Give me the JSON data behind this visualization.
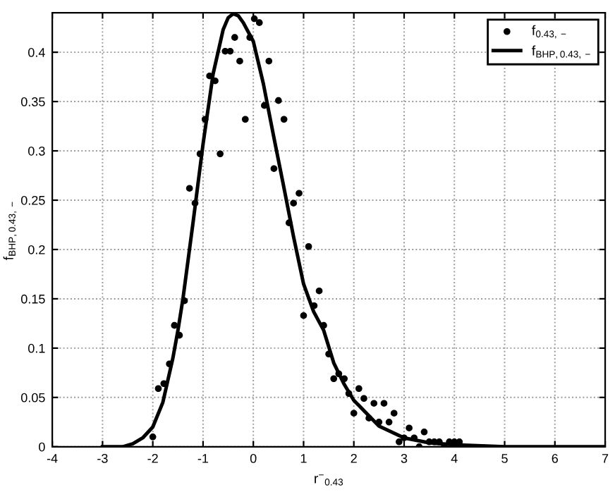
{
  "chart_data": {
    "type": "scatter",
    "xlabel": "r$^{−}$$_{0.43}$",
    "ylabel": "f$_{BHP,0.43,−}$",
    "xlim": [
      -4,
      7
    ],
    "ylim": [
      0,
      0.44
    ],
    "xticks": [
      -4,
      -3,
      -2,
      -1,
      0,
      1,
      2,
      3,
      4,
      5,
      6,
      7
    ],
    "yticks": [
      0,
      0.05,
      0.1,
      0.15,
      0.2,
      0.25,
      0.3,
      0.35,
      0.4
    ],
    "grid": true,
    "legend": "top right",
    "series": [
      {
        "name": "f$_{0.43,−}$",
        "marker": "circle",
        "color": "#000000",
        "x": [
          -2.0,
          -1.89,
          -1.78,
          -1.67,
          -1.57,
          -1.47,
          -1.37,
          -1.27,
          -1.16,
          -1.06,
          -0.96,
          -0.87,
          -0.76,
          -0.66,
          -0.56,
          -0.46,
          -0.37,
          -0.27,
          -0.16,
          -0.07,
          0.02,
          0.12,
          0.22,
          0.31,
          0.41,
          0.5,
          0.61,
          0.71,
          0.8,
          0.91,
          1.0,
          1.1,
          1.21,
          1.31,
          1.4,
          1.5,
          1.6,
          1.7,
          1.81,
          1.9,
          2.0,
          2.1,
          2.2,
          2.3,
          2.4,
          2.5,
          2.6,
          2.7,
          2.8,
          2.9,
          3.0,
          3.1,
          3.2,
          3.3,
          3.4,
          3.5,
          3.6,
          3.7,
          3.8,
          3.9,
          4.0,
          4.1
        ],
        "values": [
          0.01,
          0.059,
          0.064,
          0.084,
          0.123,
          0.113,
          0.148,
          0.262,
          0.247,
          0.297,
          0.332,
          0.376,
          0.371,
          0.297,
          0.401,
          0.401,
          0.415,
          0.391,
          0.332,
          0.415,
          0.434,
          0.43,
          0.346,
          0.391,
          0.282,
          0.351,
          0.332,
          0.227,
          0.247,
          0.257,
          0.133,
          0.203,
          0.143,
          0.158,
          0.123,
          0.094,
          0.069,
          0.074,
          0.069,
          0.054,
          0.034,
          0.059,
          0.049,
          0.029,
          0.044,
          0.025,
          0.044,
          0.025,
          0.034,
          0.005,
          0.009,
          0.019,
          0.009,
          0.0,
          0.015,
          0.005,
          0.005,
          0.005,
          0.0,
          0.005,
          0.005,
          0.005
        ]
      },
      {
        "name": "f$_{BHP,0.43,−}$",
        "type": "line",
        "marker": "none",
        "line_style": "solid",
        "color": "#000000",
        "x": [
          -3.0,
          -2.6,
          -2.4,
          -2.2,
          -2.0,
          -1.8,
          -1.6,
          -1.5,
          -1.4,
          -1.2,
          -1.0,
          -0.8,
          -0.6,
          -0.5,
          -0.4,
          -0.3,
          -0.2,
          0.0,
          0.2,
          0.4,
          0.6,
          0.8,
          1.0,
          1.2,
          1.4,
          1.6,
          1.8,
          2.0,
          2.5,
          3.0,
          3.5,
          4.0,
          5.0,
          6.0,
          7.0
        ],
        "values": [
          0.0,
          0.0,
          0.003,
          0.009,
          0.02,
          0.045,
          0.09,
          0.118,
          0.15,
          0.227,
          0.307,
          0.378,
          0.423,
          0.435,
          0.439,
          0.437,
          0.43,
          0.411,
          0.368,
          0.316,
          0.265,
          0.213,
          0.165,
          0.137,
          0.118,
          0.085,
          0.064,
          0.047,
          0.021,
          0.009,
          0.004,
          0.002,
          0.0,
          0.0,
          0.0
        ]
      }
    ]
  }
}
